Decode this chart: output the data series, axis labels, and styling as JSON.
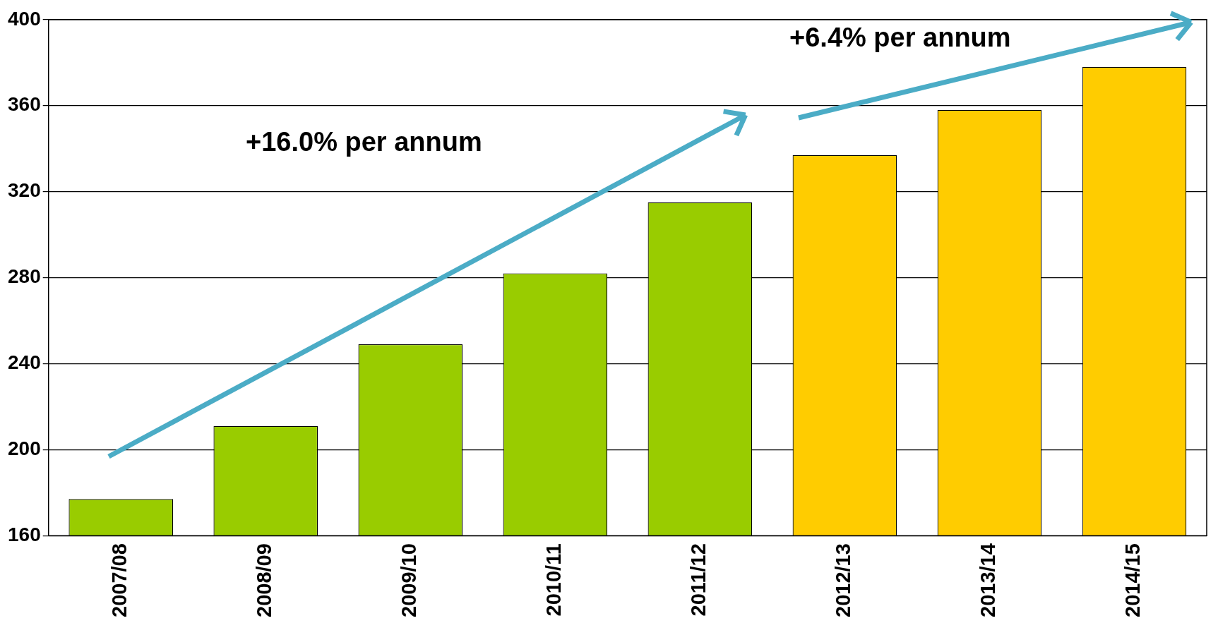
{
  "chart_data": {
    "type": "bar",
    "categories": [
      "2007/08",
      "2008/09",
      "2009/10",
      "2010/11",
      "2011/12",
      "2012/13",
      "2013/14",
      "2014/15"
    ],
    "values": [
      177,
      211,
      249,
      282,
      315,
      337,
      358,
      378
    ],
    "colors": [
      "#99cc00",
      "#99cc00",
      "#99cc00",
      "#99cc00",
      "#99cc00",
      "#ffcc00",
      "#ffcc00",
      "#ffcc00"
    ],
    "ylim": [
      160,
      400
    ],
    "yticks": [
      160,
      200,
      240,
      280,
      320,
      360,
      400
    ],
    "grid": "y",
    "legend": false,
    "annotations": [
      "+16.0% per annum",
      "+6.4% per annum"
    ]
  }
}
